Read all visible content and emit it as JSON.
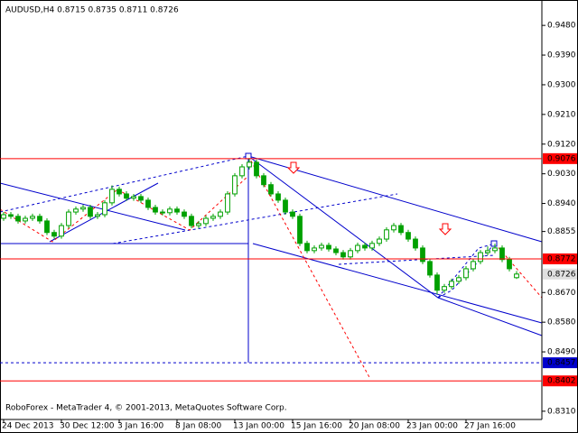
{
  "chart_data": {
    "type": "candlestick",
    "title": "AUDUSD,H4  0.8715 0.8735 0.8711 0.8726",
    "footer": "RoboForex - MetaTrader 4, © 2001-2013, MetaQuotes Software Corp.",
    "color": "#00a000",
    "xlim": [
      -0.5,
      74.5
    ],
    "xticks": [
      {
        "value": 0,
        "label": "24 Dec 2013"
      },
      {
        "value": 8,
        "label": "30 Dec 12:00"
      },
      {
        "value": 16,
        "label": "3 Jan 16:00"
      },
      {
        "value": 24,
        "label": "8 Jan 08:00"
      },
      {
        "value": 32,
        "label": "13 Jan 00:00"
      },
      {
        "value": 40,
        "label": "15 Jan 16:00"
      },
      {
        "value": 48,
        "label": "20 Jan 08:00"
      },
      {
        "value": 56,
        "label": "23 Jan 00:00"
      },
      {
        "value": 64,
        "label": "27 Jan 16:00"
      }
    ],
    "ylim": [
      0.8285,
      0.9557
    ],
    "yticks": [
      {
        "value": 0.948,
        "label": "0.9480"
      },
      {
        "value": 0.939,
        "label": "0.9390"
      },
      {
        "value": 0.93,
        "label": "0.9300"
      },
      {
        "value": 0.921,
        "label": "0.9210"
      },
      {
        "value": 0.912,
        "label": "0.9120"
      },
      {
        "value": 0.903,
        "label": "0.9030"
      },
      {
        "value": 0.894,
        "label": "0.8940"
      },
      {
        "value": 0.8855,
        "label": "0.8855"
      },
      {
        "value": 0.867,
        "label": "0.8670"
      },
      {
        "value": 0.858,
        "label": "0.8580"
      },
      {
        "value": 0.849,
        "label": "0.8490"
      },
      {
        "value": 0.831,
        "label": "0.8310"
      }
    ],
    "levels": [
      {
        "value": 0.9076,
        "label": "0.9076",
        "color": "#ff0000",
        "dash": false
      },
      {
        "value": 0.8772,
        "label": "0.8772",
        "color": "#ff0000",
        "dash": false
      },
      {
        "value": 0.8457,
        "label": "0.8457",
        "color": "#0000cc",
        "dash": true
      },
      {
        "value": 0.8402,
        "label": "0.8402",
        "color": "#ff0000",
        "dash": false
      }
    ],
    "last_price": {
      "value": 0.8726,
      "label": "0.8726"
    },
    "ohlc": [
      [
        0.8895,
        0.8914,
        0.8887,
        0.8906
      ],
      [
        0.8906,
        0.8914,
        0.8893,
        0.8901
      ],
      [
        0.8901,
        0.8909,
        0.8879,
        0.8887
      ],
      [
        0.8887,
        0.8903,
        0.8879,
        0.8895
      ],
      [
        0.8895,
        0.8909,
        0.8887,
        0.8901
      ],
      [
        0.8901,
        0.8909,
        0.8879,
        0.8887
      ],
      [
        0.8887,
        0.8895,
        0.8844,
        0.8852
      ],
      [
        0.8852,
        0.886,
        0.8833,
        0.8841
      ],
      [
        0.8841,
        0.8881,
        0.8833,
        0.8873
      ],
      [
        0.8873,
        0.8922,
        0.8865,
        0.8914
      ],
      [
        0.8914,
        0.8931,
        0.8906,
        0.8923
      ],
      [
        0.8923,
        0.8936,
        0.8915,
        0.8928
      ],
      [
        0.8928,
        0.8936,
        0.8893,
        0.8901
      ],
      [
        0.8901,
        0.8914,
        0.8893,
        0.8906
      ],
      [
        0.8906,
        0.895,
        0.8898,
        0.8942
      ],
      [
        0.8942,
        0.8995,
        0.8934,
        0.8983
      ],
      [
        0.8983,
        0.8991,
        0.8961,
        0.8969
      ],
      [
        0.8969,
        0.8977,
        0.8948,
        0.8956
      ],
      [
        0.8956,
        0.8969,
        0.8948,
        0.8961
      ],
      [
        0.8961,
        0.8969,
        0.8942,
        0.895
      ],
      [
        0.895,
        0.8958,
        0.892,
        0.8928
      ],
      [
        0.8928,
        0.8936,
        0.8906,
        0.8914
      ],
      [
        0.8914,
        0.8922,
        0.8904,
        0.8912
      ],
      [
        0.8912,
        0.8931,
        0.8904,
        0.8923
      ],
      [
        0.8923,
        0.8931,
        0.8906,
        0.8914
      ],
      [
        0.8914,
        0.8922,
        0.8893,
        0.8901
      ],
      [
        0.8901,
        0.8909,
        0.8865,
        0.8873
      ],
      [
        0.8873,
        0.8887,
        0.8865,
        0.8879
      ],
      [
        0.8879,
        0.8903,
        0.8871,
        0.8895
      ],
      [
        0.8895,
        0.8909,
        0.8887,
        0.8901
      ],
      [
        0.8901,
        0.8922,
        0.8893,
        0.8914
      ],
      [
        0.8914,
        0.8977,
        0.8906,
        0.8969
      ],
      [
        0.8969,
        0.9032,
        0.8961,
        0.9024
      ],
      [
        0.9024,
        0.9059,
        0.9016,
        0.9051
      ],
      [
        0.9051,
        0.9078,
        0.9043,
        0.9065
      ],
      [
        0.9065,
        0.9073,
        0.9016,
        0.9024
      ],
      [
        0.9024,
        0.9032,
        0.8989,
        0.8997
      ],
      [
        0.8997,
        0.9005,
        0.8961,
        0.8969
      ],
      [
        0.8969,
        0.8977,
        0.8942,
        0.895
      ],
      [
        0.895,
        0.8958,
        0.8906,
        0.8914
      ],
      [
        0.8914,
        0.8922,
        0.8893,
        0.8901
      ],
      [
        0.8901,
        0.8909,
        0.8811,
        0.8819
      ],
      [
        0.8819,
        0.8827,
        0.8789,
        0.8797
      ],
      [
        0.8797,
        0.8813,
        0.8789,
        0.8805
      ],
      [
        0.8805,
        0.8821,
        0.8797,
        0.8813
      ],
      [
        0.8813,
        0.8821,
        0.8794,
        0.8802
      ],
      [
        0.8802,
        0.881,
        0.8783,
        0.8791
      ],
      [
        0.8791,
        0.8799,
        0.877,
        0.8778
      ],
      [
        0.8778,
        0.8805,
        0.877,
        0.8797
      ],
      [
        0.8797,
        0.8821,
        0.8789,
        0.8813
      ],
      [
        0.8813,
        0.8821,
        0.8797,
        0.8805
      ],
      [
        0.8805,
        0.8827,
        0.8797,
        0.8819
      ],
      [
        0.8819,
        0.884,
        0.8811,
        0.8832
      ],
      [
        0.8832,
        0.8868,
        0.8824,
        0.886
      ],
      [
        0.886,
        0.8881,
        0.8852,
        0.8873
      ],
      [
        0.8873,
        0.8881,
        0.8844,
        0.8852
      ],
      [
        0.8852,
        0.886,
        0.8824,
        0.8832
      ],
      [
        0.8832,
        0.884,
        0.8797,
        0.8805
      ],
      [
        0.8805,
        0.8813,
        0.8756,
        0.8764
      ],
      [
        0.8764,
        0.8772,
        0.8715,
        0.8723
      ],
      [
        0.8723,
        0.8731,
        0.8665,
        0.8677
      ],
      [
        0.8677,
        0.8696,
        0.8669,
        0.8688
      ],
      [
        0.8688,
        0.8712,
        0.868,
        0.8704
      ],
      [
        0.8704,
        0.8723,
        0.8696,
        0.8715
      ],
      [
        0.8715,
        0.875,
        0.8707,
        0.8742
      ],
      [
        0.8742,
        0.8772,
        0.8734,
        0.8764
      ],
      [
        0.8764,
        0.8799,
        0.8756,
        0.8791
      ],
      [
        0.8791,
        0.881,
        0.8783,
        0.8797
      ],
      [
        0.8797,
        0.8818,
        0.8789,
        0.8805
      ],
      [
        0.8805,
        0.8813,
        0.8762,
        0.877
      ],
      [
        0.877,
        0.8778,
        0.8734,
        0.8742
      ],
      [
        0.8715,
        0.8735,
        0.8711,
        0.8726
      ]
    ]
  }
}
